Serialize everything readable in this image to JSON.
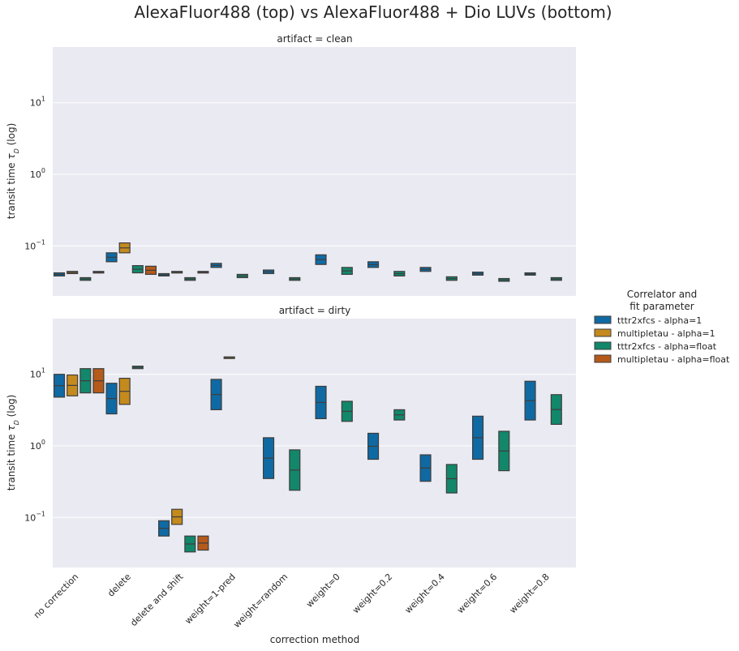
{
  "figure": {
    "title": "AlexaFluor488 (top) vs AlexaFluor488 + Dio LUVs (bottom)",
    "xlabel": "correction method",
    "ylabel_prefix": "transit time ",
    "ylabel_symbol": "τ",
    "ylabel_sub": "D",
    "ylabel_suffix": " (log)"
  },
  "legend": {
    "title_line1": "Correlator and",
    "title_line2": "fit parameter",
    "position": "right",
    "items": [
      {
        "label": "tttr2xfcs - alpha=1",
        "color": "#0f6aa3"
      },
      {
        "label": "multipletau - alpha=1",
        "color": "#c48a1e"
      },
      {
        "label": "tttr2xfcs - alpha=float",
        "color": "#12876a"
      },
      {
        "label": "multipletau - alpha=float",
        "color": "#b55a1a"
      }
    ]
  },
  "chart_data": {
    "type": "boxen",
    "yscale": "log",
    "ylim": [
      0.02,
      60
    ],
    "yticks": [
      {
        "value": 0.1,
        "base": "10",
        "exp": "−1"
      },
      {
        "value": 1,
        "base": "10",
        "exp": "0"
      },
      {
        "value": 10,
        "base": "10",
        "exp": "1"
      }
    ],
    "categories": [
      "no correction",
      "delete",
      "delete and shift",
      "weight=1-pred",
      "weight=random",
      "weight=0",
      "weight=0.2",
      "weight=0.4",
      "weight=0.6",
      "weight=0.8"
    ],
    "grid": true,
    "panels": [
      {
        "title": "artifact = clean",
        "series": [
          {
            "name": "tttr2xfcs - alpha=1",
            "values": [
              [
                0.038,
                0.042
              ],
              [
                0.06,
                0.08
              ],
              [
                0.038,
                0.041
              ],
              [
                0.05,
                0.057
              ],
              [
                0.041,
                0.046
              ],
              [
                0.055,
                0.075
              ],
              [
                0.05,
                0.06
              ],
              [
                0.044,
                0.05
              ],
              [
                0.039,
                0.043
              ],
              [
                0.039,
                0.042
              ]
            ]
          },
          {
            "name": "multipletau - alpha=1",
            "values": [
              [
                0.041,
                0.044
              ],
              [
                0.08,
                0.11
              ],
              [
                0.042,
                0.044
              ],
              null,
              null,
              null,
              null,
              null,
              null,
              null
            ]
          },
          {
            "name": "tttr2xfcs - alpha=float",
            "values": [
              [
                0.033,
                0.036
              ],
              [
                0.042,
                0.053
              ],
              [
                0.033,
                0.036
              ],
              [
                0.036,
                0.04
              ],
              [
                0.033,
                0.036
              ],
              [
                0.04,
                0.05
              ],
              [
                0.038,
                0.044
              ],
              [
                0.033,
                0.037
              ],
              [
                0.032,
                0.035
              ],
              [
                0.033,
                0.036
              ]
            ]
          },
          {
            "name": "multipletau - alpha=float",
            "values": [
              [
                0.042,
                0.044
              ],
              [
                0.04,
                0.052
              ],
              [
                0.042,
                0.044
              ],
              null,
              null,
              null,
              null,
              null,
              null,
              null
            ]
          }
        ]
      },
      {
        "title": "artifact = dirty",
        "series": [
          {
            "name": "tttr2xfcs - alpha=1",
            "values": [
              [
                4.8,
                10
              ],
              [
                2.8,
                7.5
              ],
              [
                0.055,
                0.09
              ],
              [
                3.2,
                8.5
              ],
              [
                0.35,
                1.3
              ],
              [
                2.4,
                6.8
              ],
              [
                0.65,
                1.5
              ],
              [
                0.32,
                0.75
              ],
              [
                0.65,
                2.6
              ],
              [
                2.3,
                8
              ]
            ]
          },
          {
            "name": "multipletau - alpha=1",
            "values": [
              [
                5,
                9.8
              ],
              [
                3.8,
                8.8
              ],
              [
                0.08,
                0.13
              ],
              [
                17,
                17.5
              ],
              null,
              null,
              null,
              null,
              null,
              null
            ]
          },
          {
            "name": "tttr2xfcs - alpha=float",
            "values": [
              [
                5.5,
                12
              ],
              [
                12,
                13
              ],
              [
                0.033,
                0.055
              ],
              null,
              [
                0.24,
                0.88
              ],
              [
                2.2,
                4.2
              ],
              [
                2.3,
                3.2
              ],
              [
                0.22,
                0.55
              ],
              [
                0.45,
                1.6
              ],
              [
                2,
                5.2
              ]
            ]
          },
          {
            "name": "multipletau - alpha=float",
            "values": [
              [
                5.5,
                12
              ],
              null,
              [
                0.035,
                0.055
              ],
              null,
              null,
              null,
              null,
              null,
              null,
              null
            ]
          }
        ]
      }
    ]
  }
}
